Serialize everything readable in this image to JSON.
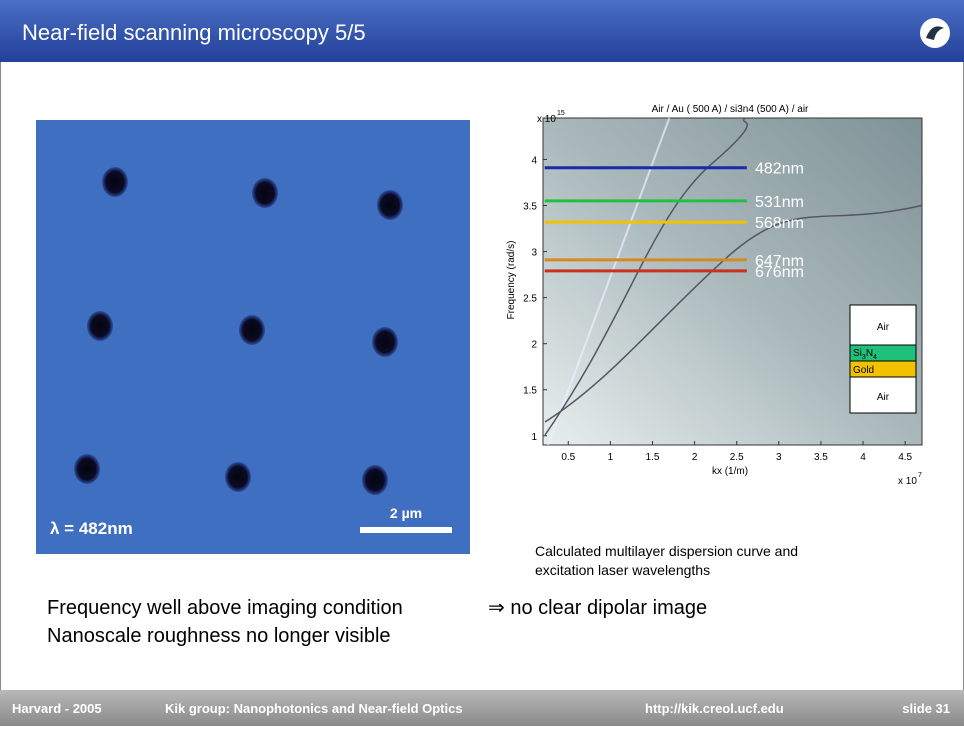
{
  "header": {
    "title": "Near-field scanning microscopy 5/5"
  },
  "image": {
    "wavelength_label": "λ = 482nm",
    "scale_label": "2 µm"
  },
  "plot": {
    "title": "Air / Au ( 500 A) / si3n4  (500 A) / air",
    "y_label": "Frequency (rad/s)",
    "x_label": "kx (1/m)",
    "y_exponent": {
      "base": "x 10",
      "power": "15"
    },
    "x_exponent": {
      "base": "x 10",
      "power": "7"
    },
    "xlim": [
      0.2,
      4.7
    ],
    "ylim": [
      0.9,
      4.45
    ],
    "xticks": [
      0.5,
      1,
      1.5,
      2,
      2.5,
      3,
      3.5,
      4,
      4.5
    ],
    "yticks": [
      1,
      1.5,
      2,
      2.5,
      3,
      3.5,
      4
    ],
    "laser_kx": [
      0.22,
      2.62
    ],
    "lasers": [
      {
        "label": "482nm",
        "frequency": 3.91,
        "color": "#1a2aa8"
      },
      {
        "label": "531nm",
        "frequency": 3.55,
        "color": "#22c040"
      },
      {
        "label": "568nm",
        "frequency": 3.32,
        "color": "#f2c200"
      },
      {
        "label": "647nm",
        "frequency": 2.91,
        "color": "#d68a1e"
      },
      {
        "label": "676nm",
        "frequency": 2.79,
        "color": "#c8321e"
      }
    ],
    "layers": {
      "air_top": "Air",
      "si": "Si",
      "si_sub": "3",
      "n": "N",
      "n_sub": "4",
      "gold": "Gold",
      "air_bottom": "Air"
    }
  },
  "caption": [
    "Calculated multilayer dispersion curve and",
    "excitation laser wavelengths"
  ],
  "body": {
    "line1": "Frequency well above imaging condition",
    "arrow": "⇒ no clear dipolar image",
    "line2": "Nanoscale roughness no longer visible"
  },
  "footer": {
    "left": "Harvard - 2005",
    "center": "Kik group:  Nanophotonics and Near-field Optics",
    "url": "http://kik.creol.ucf.edu",
    "slide": "slide 31"
  }
}
